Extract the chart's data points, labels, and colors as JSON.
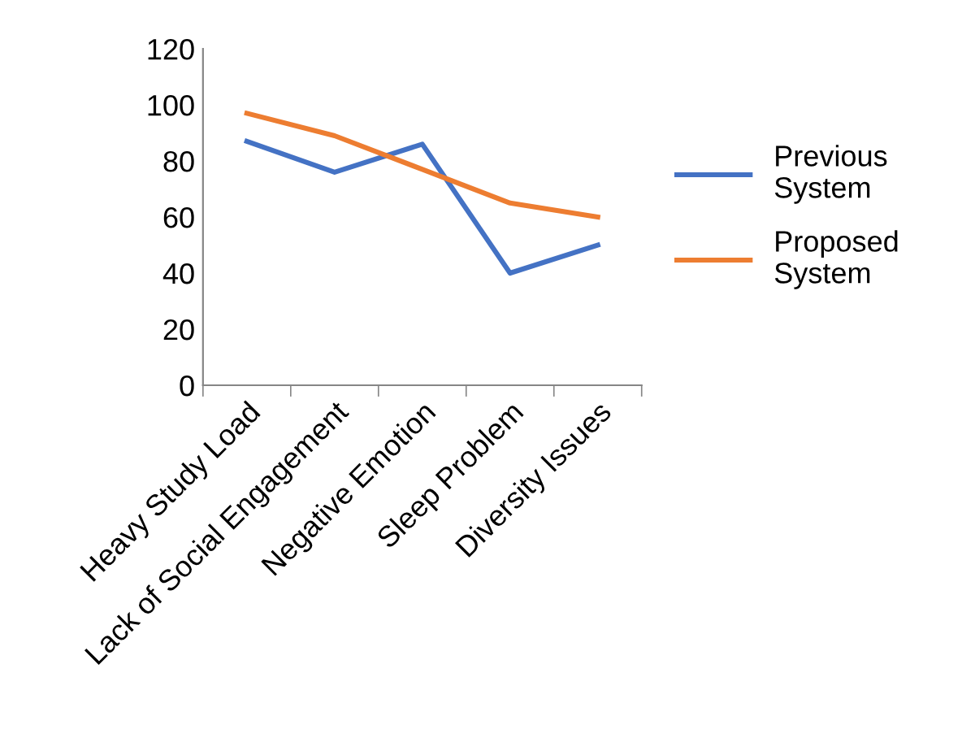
{
  "chart_data": {
    "type": "line",
    "categories": [
      "Heavy Study Load",
      "Lack of Social Engagement",
      "Negative Emotion",
      "Sleep Problem",
      "Diversity Issues"
    ],
    "series": [
      {
        "name": "Previous\nSystem",
        "color": "#4472c4",
        "values": [
          87,
          76,
          86,
          40,
          50
        ]
      },
      {
        "name": "Proposed\nSystem",
        "color": "#ed7d31",
        "values": [
          97,
          89,
          77,
          65,
          60
        ]
      }
    ],
    "ylim": [
      0,
      120
    ],
    "yticks": [
      0,
      20,
      40,
      60,
      80,
      100,
      120
    ],
    "grid": false,
    "legend": "right",
    "marker": "none",
    "line_style": "solid"
  }
}
